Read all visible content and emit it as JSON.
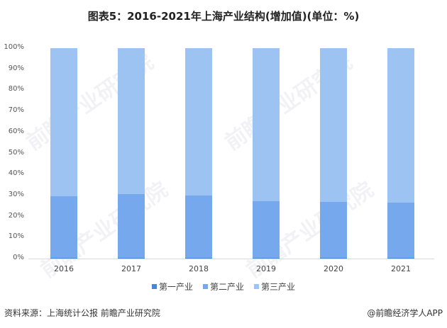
{
  "title": "图表5：2016-2021年上海产业结构(增加值)(单位：%)",
  "colors": {
    "primary": "#4a86d8",
    "secondary": "#76a8ee",
    "tertiary": "#9dc3f3"
  },
  "legend": [
    {
      "label": "第一产业",
      "color": "#4a86d8"
    },
    {
      "label": "第二产业",
      "color": "#76a8ee"
    },
    {
      "label": "第三产业",
      "color": "#9dc3f3"
    }
  ],
  "footer": {
    "source": "资料来源：上海统计公报 前瞻产业研究院",
    "credit": "@前瞻经济学人APP"
  },
  "watermark": "前瞻产业研究院",
  "chart_data": {
    "type": "bar",
    "stacked": true,
    "title": "图表5：2016-2021年上海产业结构(增加值)(单位：%)",
    "xlabel": "",
    "ylabel": "",
    "ylim": [
      0,
      100
    ],
    "yticks": [
      "0%",
      "10%",
      "20%",
      "30%",
      "40%",
      "50%",
      "60%",
      "70%",
      "80%",
      "90%",
      "100%"
    ],
    "categories": [
      "2016",
      "2017",
      "2018",
      "2019",
      "2020",
      "2021"
    ],
    "series": [
      {
        "name": "第一产业",
        "values": [
          0.4,
          0.3,
          0.3,
          0.3,
          0.3,
          0.2
        ]
      },
      {
        "name": "第二产业",
        "values": [
          29.1,
          30.5,
          29.8,
          27.0,
          26.6,
          26.5
        ]
      },
      {
        "name": "第三产业",
        "values": [
          70.5,
          69.2,
          69.9,
          72.7,
          73.1,
          73.3
        ]
      }
    ],
    "legend_position": "bottom",
    "grid": false
  }
}
